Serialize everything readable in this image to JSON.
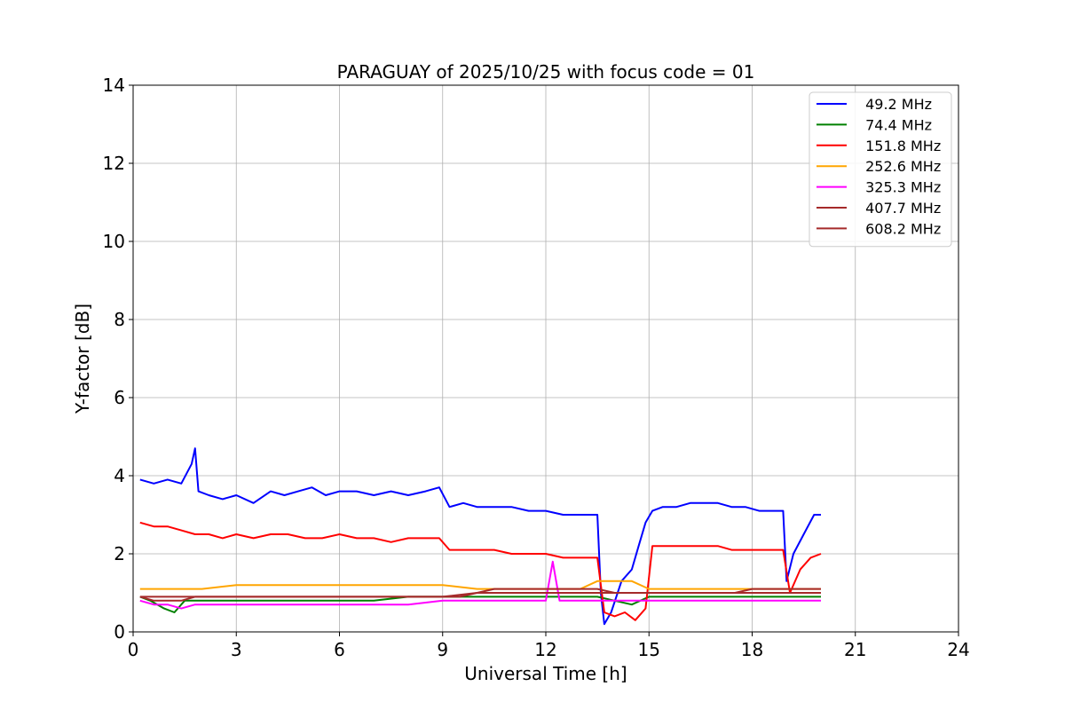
{
  "chart_data": {
    "type": "line",
    "title": "PARAGUAY of 2025/10/25 with focus code = 01",
    "xlabel": "Universal Time [h]",
    "ylabel": "Y-factor [dB]",
    "xlim": [
      0,
      24
    ],
    "ylim": [
      0,
      14
    ],
    "xticks": [
      0,
      3,
      6,
      9,
      12,
      15,
      18,
      21,
      24
    ],
    "yticks": [
      0,
      2,
      4,
      6,
      8,
      10,
      12,
      14
    ],
    "grid": true,
    "legend_position": "top-right",
    "series": [
      {
        "name": " 49.2 MHz",
        "color": "#0000ff",
        "x": [
          0.2,
          0.6,
          1.0,
          1.4,
          1.7,
          1.8,
          1.9,
          2.2,
          2.6,
          3.0,
          3.5,
          4.0,
          4.4,
          4.8,
          5.2,
          5.6,
          6.0,
          6.5,
          7.0,
          7.5,
          8.0,
          8.5,
          8.9,
          9.2,
          9.6,
          10.0,
          10.5,
          11.0,
          11.5,
          12.0,
          12.5,
          13.0,
          13.5,
          13.6,
          13.7,
          13.9,
          14.2,
          14.5,
          14.7,
          14.9,
          15.1,
          15.4,
          15.8,
          16.2,
          16.6,
          17.0,
          17.4,
          17.8,
          18.2,
          18.6,
          18.9,
          19.0,
          19.2,
          19.5,
          19.8,
          20.0
        ],
        "y": [
          3.9,
          3.8,
          3.9,
          3.8,
          4.3,
          4.7,
          3.6,
          3.5,
          3.4,
          3.5,
          3.3,
          3.6,
          3.5,
          3.6,
          3.7,
          3.5,
          3.6,
          3.6,
          3.5,
          3.6,
          3.5,
          3.6,
          3.7,
          3.2,
          3.3,
          3.2,
          3.2,
          3.2,
          3.1,
          3.1,
          3.0,
          3.0,
          3.0,
          1.0,
          0.2,
          0.5,
          1.3,
          1.6,
          2.2,
          2.8,
          3.1,
          3.2,
          3.2,
          3.3,
          3.3,
          3.3,
          3.2,
          3.2,
          3.1,
          3.1,
          3.1,
          1.3,
          2.0,
          2.5,
          3.0,
          3.0
        ]
      },
      {
        "name": " 74.4 MHz",
        "color": "#008000",
        "x": [
          0.2,
          0.5,
          0.9,
          1.2,
          1.5,
          2.0,
          3.0,
          4.0,
          5.0,
          6.0,
          7.0,
          8.0,
          9.0,
          10.0,
          11.0,
          12.0,
          13.0,
          13.5,
          14.0,
          14.5,
          15.0,
          16.0,
          17.0,
          18.0,
          19.0,
          20.0
        ],
        "y": [
          0.9,
          0.8,
          0.6,
          0.5,
          0.8,
          0.8,
          0.8,
          0.8,
          0.8,
          0.8,
          0.8,
          0.9,
          0.9,
          0.9,
          0.9,
          0.9,
          0.9,
          0.9,
          0.8,
          0.7,
          0.9,
          0.9,
          0.9,
          0.9,
          0.9,
          0.9
        ]
      },
      {
        "name": " 151.8 MHz",
        "color": "#ff0000",
        "x": [
          0.2,
          0.6,
          1.0,
          1.4,
          1.8,
          2.2,
          2.6,
          3.0,
          3.5,
          4.0,
          4.5,
          5.0,
          5.5,
          6.0,
          6.5,
          7.0,
          7.5,
          8.0,
          8.5,
          8.9,
          9.2,
          9.6,
          10.0,
          10.5,
          11.0,
          11.5,
          12.0,
          12.5,
          13.0,
          13.5,
          13.7,
          14.0,
          14.3,
          14.6,
          14.9,
          15.1,
          15.4,
          15.8,
          16.2,
          16.6,
          17.0,
          17.4,
          17.8,
          18.2,
          18.6,
          18.9,
          19.1,
          19.4,
          19.7,
          20.0
        ],
        "y": [
          2.8,
          2.7,
          2.7,
          2.6,
          2.5,
          2.5,
          2.4,
          2.5,
          2.4,
          2.5,
          2.5,
          2.4,
          2.4,
          2.5,
          2.4,
          2.4,
          2.3,
          2.4,
          2.4,
          2.4,
          2.1,
          2.1,
          2.1,
          2.1,
          2.0,
          2.0,
          2.0,
          1.9,
          1.9,
          1.9,
          0.5,
          0.4,
          0.5,
          0.3,
          0.6,
          2.2,
          2.2,
          2.2,
          2.2,
          2.2,
          2.2,
          2.1,
          2.1,
          2.1,
          2.1,
          2.1,
          1.0,
          1.6,
          1.9,
          2.0
        ]
      },
      {
        "name": " 252.6 MHz",
        "color": "#ffa500",
        "x": [
          0.2,
          1.0,
          2.0,
          3.0,
          4.0,
          5.0,
          6.0,
          7.0,
          8.0,
          9.0,
          10.0,
          11.0,
          12.0,
          13.0,
          13.5,
          14.0,
          14.5,
          15.0,
          16.0,
          17.0,
          18.0,
          19.0,
          20.0
        ],
        "y": [
          1.1,
          1.1,
          1.1,
          1.2,
          1.2,
          1.2,
          1.2,
          1.2,
          1.2,
          1.2,
          1.1,
          1.1,
          1.1,
          1.1,
          1.3,
          1.3,
          1.3,
          1.1,
          1.1,
          1.1,
          1.1,
          1.1,
          1.1
        ]
      },
      {
        "name": " 325.3 MHz",
        "color": "#ff00ff",
        "x": [
          0.2,
          0.6,
          1.0,
          1.4,
          1.8,
          2.2,
          2.6,
          3.0,
          3.5,
          4.0,
          5.0,
          6.0,
          7.0,
          8.0,
          9.0,
          10.0,
          11.0,
          12.0,
          12.2,
          12.4,
          13.0,
          14.0,
          15.0,
          16.0,
          17.0,
          18.0,
          19.0,
          20.0
        ],
        "y": [
          0.8,
          0.7,
          0.7,
          0.6,
          0.7,
          0.7,
          0.7,
          0.7,
          0.7,
          0.7,
          0.7,
          0.7,
          0.7,
          0.7,
          0.8,
          0.8,
          0.8,
          0.8,
          1.8,
          0.8,
          0.8,
          0.8,
          0.8,
          0.8,
          0.8,
          0.8,
          0.8,
          0.8
        ]
      },
      {
        "name": " 407.7 MHz",
        "color": "#a52a2a",
        "x": [
          0.2,
          1.0,
          2.0,
          3.0,
          4.0,
          5.0,
          6.0,
          7.0,
          8.0,
          9.0,
          10.0,
          11.0,
          12.0,
          13.0,
          14.0,
          15.0,
          16.0,
          17.0,
          18.0,
          19.0,
          20.0
        ],
        "y": [
          0.9,
          0.9,
          0.9,
          0.9,
          0.9,
          0.9,
          0.9,
          0.9,
          0.9,
          0.9,
          1.0,
          1.0,
          1.0,
          1.0,
          1.0,
          1.0,
          1.0,
          1.0,
          1.0,
          1.0,
          1.0
        ]
      },
      {
        "name": " 608.2 MHz",
        "color": "#a52a2a",
        "x": [
          0.2,
          0.6,
          1.0,
          1.4,
          1.8,
          2.2,
          2.6,
          3.0,
          3.5,
          4.0,
          4.5,
          5.0,
          5.5,
          6.0,
          6.5,
          7.0,
          7.5,
          8.0,
          8.5,
          9.0,
          9.5,
          10.0,
          10.5,
          11.0,
          11.5,
          12.0,
          12.5,
          13.0,
          13.5,
          14.0,
          14.5,
          15.0,
          15.5,
          16.0,
          16.5,
          17.0,
          17.5,
          18.0,
          18.5,
          19.0,
          19.5,
          20.0
        ],
        "y": [
          0.9,
          0.8,
          0.8,
          0.8,
          0.9,
          0.9,
          0.9,
          0.9,
          0.9,
          0.9,
          0.9,
          0.9,
          0.9,
          0.9,
          0.9,
          0.9,
          0.9,
          0.9,
          0.9,
          0.9,
          0.9,
          1.0,
          1.1,
          1.1,
          1.1,
          1.1,
          1.1,
          1.1,
          1.1,
          1.0,
          1.0,
          1.0,
          1.0,
          1.0,
          1.0,
          1.0,
          1.0,
          1.1,
          1.1,
          1.1,
          1.1,
          1.1
        ]
      }
    ]
  }
}
